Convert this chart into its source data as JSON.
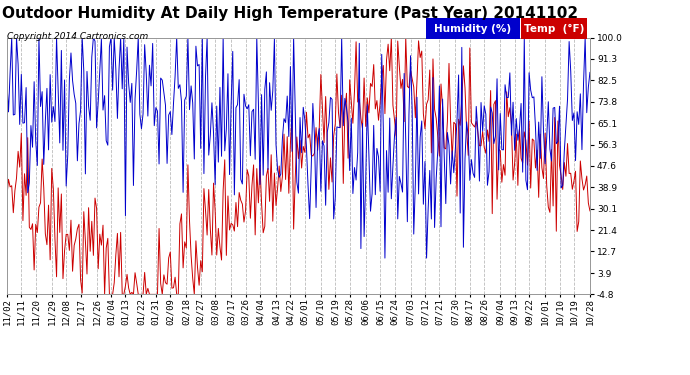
{
  "title": "Outdoor Humidity At Daily High Temperature (Past Year) 20141102",
  "copyright": "Copyright 2014 Cartronics.com",
  "ylabel_right_ticks": [
    100.0,
    91.3,
    82.5,
    73.8,
    65.1,
    56.3,
    47.6,
    38.9,
    30.1,
    21.4,
    12.7,
    3.9,
    -4.8
  ],
  "ymin": -4.8,
  "ymax": 100.0,
  "legend_humidity_color": "#0000cc",
  "legend_temp_color": "#cc0000",
  "legend_humidity_label": "Humidity (%)",
  "legend_temp_label": "Temp  (°F)",
  "background_color": "#ffffff",
  "plot_bg_color": "#ffffff",
  "grid_color": "#bbbbbb",
  "x_labels": [
    "11/02",
    "11/11",
    "11/20",
    "11/29",
    "12/08",
    "12/17",
    "12/26",
    "01/04",
    "01/13",
    "01/22",
    "01/31",
    "02/09",
    "02/18",
    "02/27",
    "03/08",
    "03/17",
    "03/26",
    "04/04",
    "04/13",
    "04/22",
    "05/01",
    "05/10",
    "05/19",
    "05/28",
    "06/06",
    "06/15",
    "06/24",
    "07/03",
    "07/12",
    "07/21",
    "07/30",
    "08/17",
    "08/26",
    "09/04",
    "09/13",
    "09/22",
    "10/01",
    "10/10",
    "10/19",
    "10/28"
  ],
  "title_fontsize": 11,
  "copyright_fontsize": 6.5,
  "tick_fontsize": 6.5,
  "legend_fontsize": 7.5,
  "n_points": 365
}
